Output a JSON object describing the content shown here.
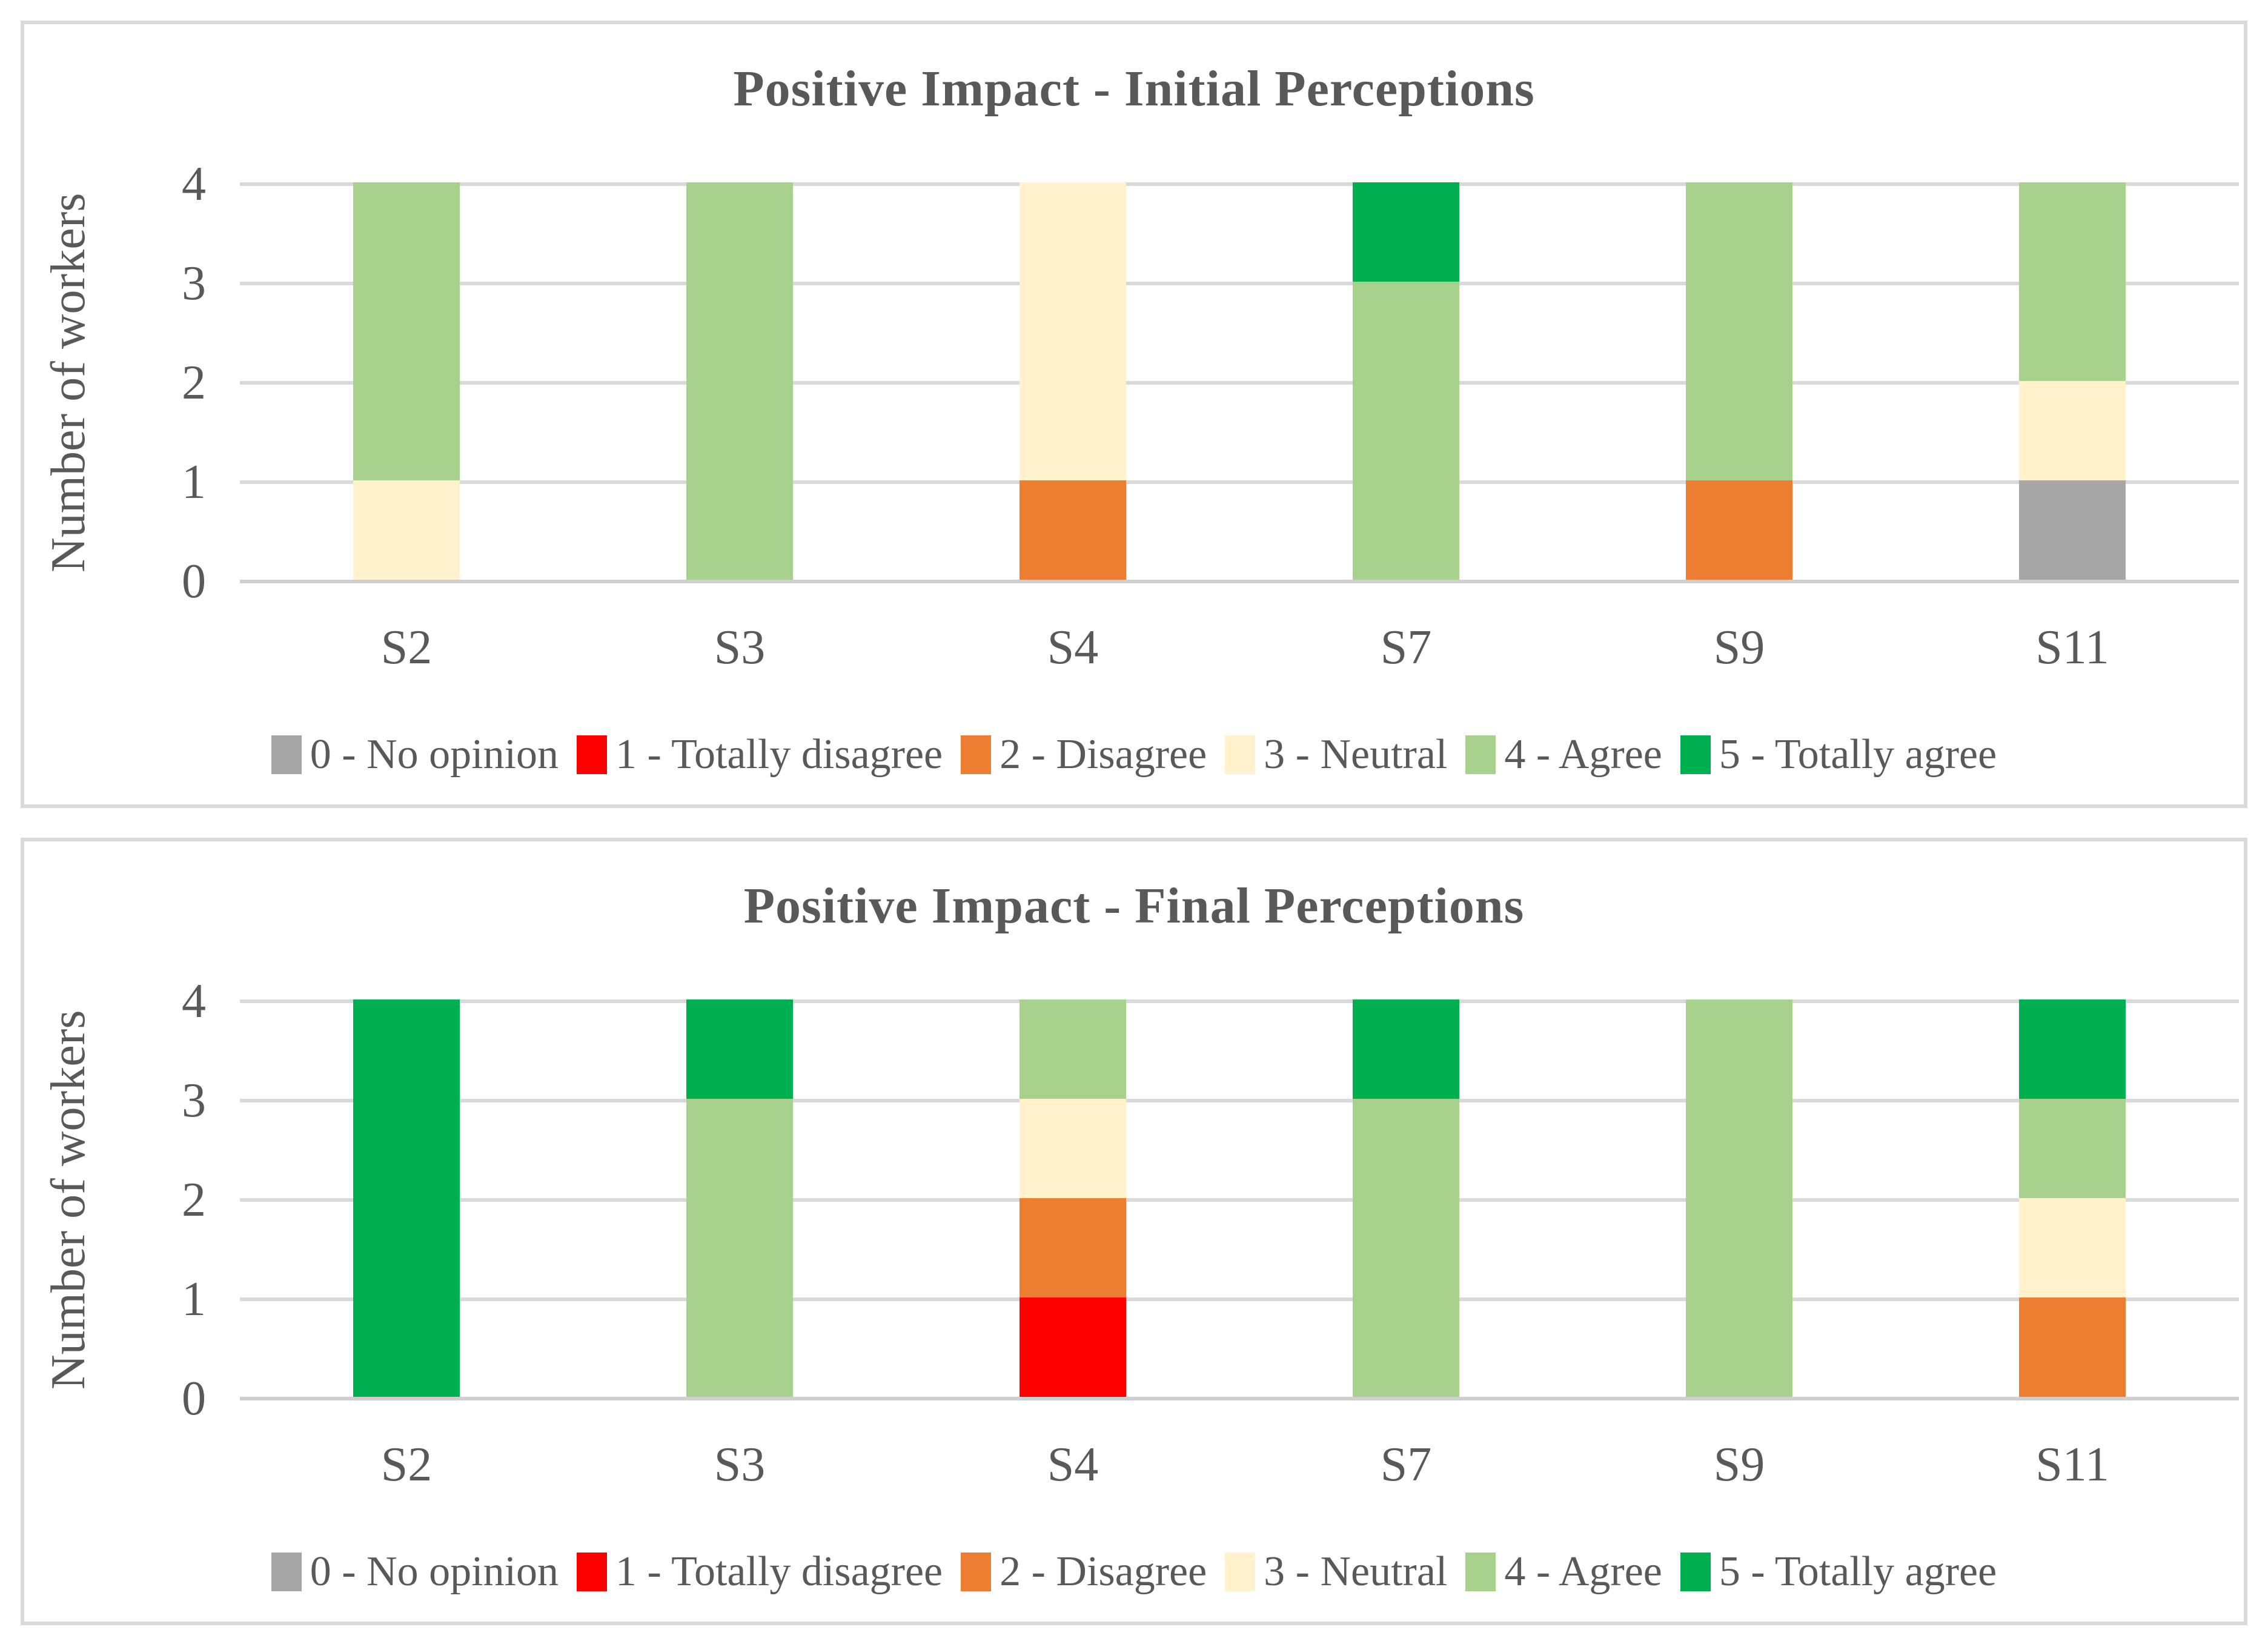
{
  "styles": {
    "text_color": "#595959",
    "grid_color": "#D9D9D9",
    "axis_color": "#CFCFCF",
    "panel_border_color": "#D9D9D9",
    "background": "#FFFFFF"
  },
  "legend_items": [
    {
      "key": "no-opinion",
      "label": "0 - No opinion",
      "color": "#A6A6A6"
    },
    {
      "key": "totally-disagree",
      "label": "1 - Totally disagree",
      "color": "#FF0000"
    },
    {
      "key": "disagree",
      "label": "2 - Disagree",
      "color": "#ED7D31"
    },
    {
      "key": "neutral",
      "label": "3 - Neutral",
      "color": "#FFF2CC"
    },
    {
      "key": "agree",
      "label": "4 - Agree",
      "color": "#A9D18E"
    },
    {
      "key": "totally-agree",
      "label": "5 - Totally agree",
      "color": "#00B050"
    }
  ],
  "chart_data": [
    {
      "type": "bar",
      "stacked": true,
      "title": "Positive Impact - Initial Perceptions",
      "xlabel": "",
      "ylabel": "Number of workers",
      "ylim": [
        0,
        4
      ],
      "yticks": [
        0,
        1,
        2,
        3,
        4
      ],
      "grid": true,
      "legend_position": "bottom",
      "categories": [
        "S2",
        "S3",
        "S4",
        "S7",
        "S9",
        "S11"
      ],
      "series": [
        {
          "name": "0 - No opinion",
          "key": "no-opinion",
          "color": "#A6A6A6",
          "values": [
            0,
            0,
            0,
            0,
            0,
            1
          ]
        },
        {
          "name": "1 - Totally disagree",
          "key": "totally-disagree",
          "color": "#FF0000",
          "values": [
            0,
            0,
            0,
            0,
            0,
            0
          ]
        },
        {
          "name": "2 - Disagree",
          "key": "disagree",
          "color": "#ED7D31",
          "values": [
            0,
            0,
            1,
            0,
            1,
            0
          ]
        },
        {
          "name": "3 - Neutral",
          "key": "neutral",
          "color": "#FFF2CC",
          "values": [
            1,
            0,
            3,
            0,
            0,
            1
          ]
        },
        {
          "name": "4 - Agree",
          "key": "agree",
          "color": "#A9D18E",
          "values": [
            3,
            4,
            0,
            3,
            3,
            2
          ]
        },
        {
          "name": "5 - Totally agree",
          "key": "totally-agree",
          "color": "#00B050",
          "values": [
            0,
            0,
            0,
            1,
            0,
            0
          ]
        }
      ]
    },
    {
      "type": "bar",
      "stacked": true,
      "title": "Positive Impact - Final Perceptions",
      "xlabel": "",
      "ylabel": "Number of workers",
      "ylim": [
        0,
        4
      ],
      "yticks": [
        0,
        1,
        2,
        3,
        4
      ],
      "grid": true,
      "legend_position": "bottom",
      "categories": [
        "S2",
        "S3",
        "S4",
        "S7",
        "S9",
        "S11"
      ],
      "series": [
        {
          "name": "0 - No opinion",
          "key": "no-opinion",
          "color": "#A6A6A6",
          "values": [
            0,
            0,
            0,
            0,
            0,
            0
          ]
        },
        {
          "name": "1 - Totally disagree",
          "key": "totally-disagree",
          "color": "#FF0000",
          "values": [
            0,
            0,
            1,
            0,
            0,
            0
          ]
        },
        {
          "name": "2 - Disagree",
          "key": "disagree",
          "color": "#ED7D31",
          "values": [
            0,
            0,
            1,
            0,
            0,
            1
          ]
        },
        {
          "name": "3 - Neutral",
          "key": "neutral",
          "color": "#FFF2CC",
          "values": [
            0,
            0,
            1,
            0,
            0,
            1
          ]
        },
        {
          "name": "4 - Agree",
          "key": "agree",
          "color": "#A9D18E",
          "values": [
            0,
            3,
            1,
            3,
            4,
            1
          ]
        },
        {
          "name": "5 - Totally agree",
          "key": "totally-agree",
          "color": "#00B050",
          "values": [
            4,
            1,
            0,
            1,
            0,
            1
          ]
        }
      ]
    }
  ]
}
